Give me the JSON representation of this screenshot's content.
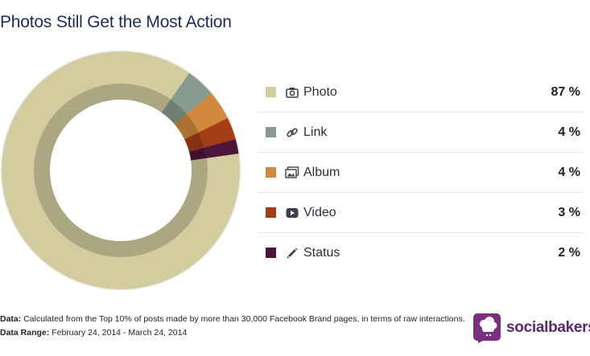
{
  "title": "Photos Still Get the Most Action",
  "chart_data": {
    "type": "pie",
    "categories": [
      "Photo",
      "Link",
      "Album",
      "Video",
      "Status"
    ],
    "values": [
      87,
      4,
      4,
      3,
      2
    ],
    "labels": [
      "87 %",
      "4 %",
      "4 %",
      "3 %",
      "2 %"
    ],
    "colors": [
      "#d2cc9e",
      "#869b8e",
      "#d18a3c",
      "#a53d16",
      "#4d1539"
    ],
    "icons": [
      "camera-icon",
      "link-icon",
      "album-icon",
      "video-icon",
      "pencil-icon"
    ],
    "legend_position": "right"
  },
  "footer": {
    "data_label": "Data:",
    "data_text": "Calculated from the Top 10% of posts made by more than 30,000 Facebook Brand pages, in terms of raw interactions.",
    "range_label": "Data Range:",
    "range_text": "February 24, 2014 - March 24, 2014"
  },
  "brand": {
    "name": "socialbakers",
    "color": "#5b2a6e"
  }
}
